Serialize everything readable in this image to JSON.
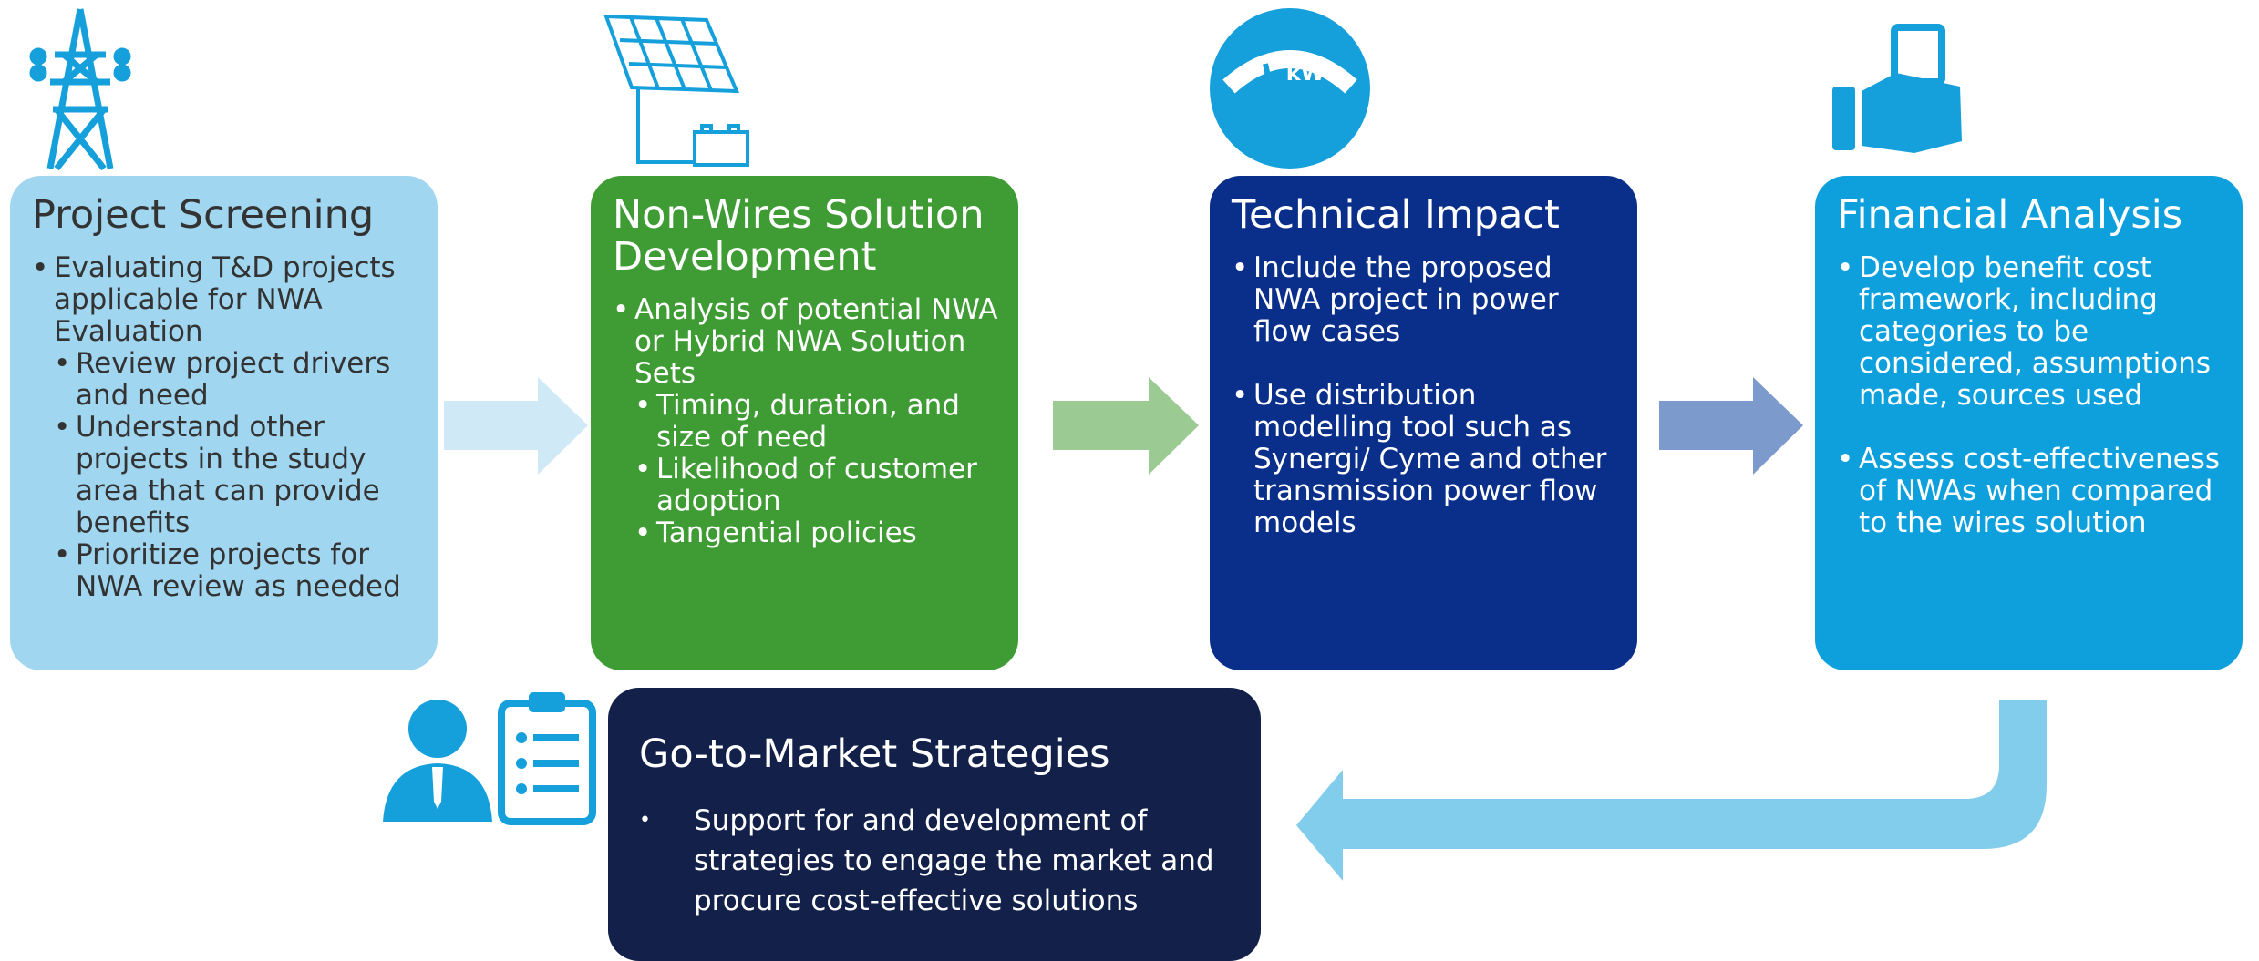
{
  "boxes": [
    {
      "title": "Project Screening",
      "bullets": [
        {
          "text": "Evaluating T&D projects applicable for NWA Evaluation",
          "sub": [
            "Review project drivers and need",
            "Understand other projects in the study area that can provide benefits",
            "Prioritize projects for NWA review as needed"
          ]
        }
      ]
    },
    {
      "title": "Non-Wires Solution Development",
      "bullets": [
        {
          "text": "Analysis of potential NWA or Hybrid NWA Solution Sets",
          "sub": [
            "Timing, duration, and size of need",
            "Likelihood of customer adoption",
            "Tangential policies"
          ]
        }
      ]
    },
    {
      "title": "Technical Impact",
      "bullets": [
        {
          "text": "Include the proposed NWA project in power flow cases",
          "sub": []
        },
        {
          "text": "Use distribution modelling tool such as Synergi/ Cyme and other transmission power flow models",
          "sub": []
        }
      ]
    },
    {
      "title": "Financial Analysis",
      "bullets": [
        {
          "text": "Develop benefit cost framework, including categories to be considered, assumptions made, sources used",
          "sub": []
        },
        {
          "text": "Assess cost-effectiveness of NWAs when compared to the wires solution",
          "sub": []
        }
      ]
    }
  ],
  "market": {
    "title": "Go-to-Market Strategies",
    "bullet": "Support for and development of strategies to engage the market and procure cost-effective solutions"
  },
  "gauge_label": "kW"
}
